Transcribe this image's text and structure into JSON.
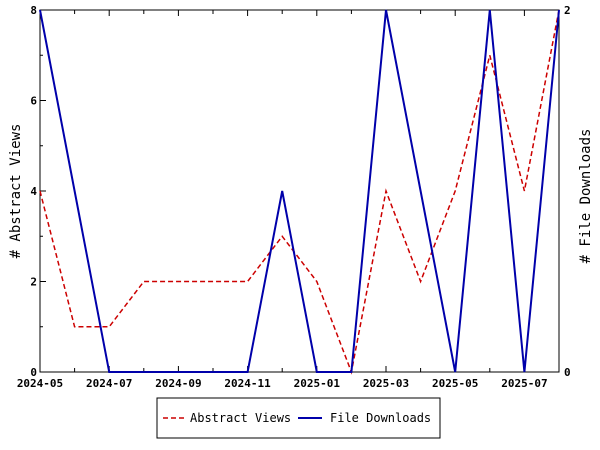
{
  "chart_data": {
    "type": "line",
    "x": [
      "2024-05",
      "2024-06",
      "2024-07",
      "2024-08",
      "2024-09",
      "2024-10",
      "2024-11",
      "2024-12",
      "2025-01",
      "2025-02",
      "2025-03",
      "2025-04",
      "2025-05",
      "2025-06",
      "2025-07",
      "2025-08"
    ],
    "x_tick_labels": [
      "2024-05",
      "2024-07",
      "2024-09",
      "2024-11",
      "2025-01",
      "2025-03",
      "2025-05",
      "2025-07"
    ],
    "series": [
      {
        "name": "Abstract Views",
        "axis": "left",
        "color": "#cc0000",
        "style": "dashed",
        "values": [
          4,
          1,
          1,
          2,
          2,
          2,
          2,
          3,
          2,
          0,
          4,
          2,
          4,
          7,
          4,
          8
        ]
      },
      {
        "name": "File Downloads",
        "axis": "right",
        "color": "#0000aa",
        "style": "solid",
        "values": [
          2,
          1,
          0,
          0,
          0,
          0,
          0,
          1,
          0,
          0,
          2,
          1,
          0,
          2,
          0,
          2
        ]
      }
    ],
    "ylabel_left": "# Abstract Views",
    "ylabel_right": "# File Downloads",
    "ylim_left": [
      0,
      8
    ],
    "yticks_left": [
      0,
      2,
      4,
      6,
      8
    ],
    "ylim_right": [
      0,
      2
    ],
    "yticks_right": [
      0,
      2
    ],
    "grid": false,
    "legend_position": "bottom-center"
  }
}
